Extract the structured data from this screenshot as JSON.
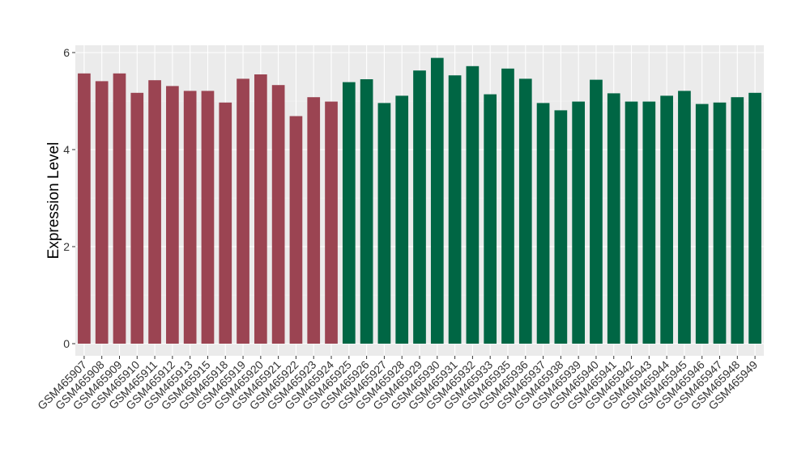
{
  "chart_data": {
    "type": "bar",
    "ylabel": "Expression Level",
    "xlabel": "",
    "ylim": [
      -0.25,
      6.15
    ],
    "yticks": [
      0,
      2,
      4,
      6
    ],
    "grid": true,
    "panel_background": "#EBEBEB",
    "categories": [
      "GSM465907",
      "GSM465908",
      "GSM465909",
      "GSM465910",
      "GSM465911",
      "GSM465912",
      "GSM465913",
      "GSM465915",
      "GSM465918",
      "GSM465919",
      "GSM465920",
      "GSM465921",
      "GSM465922",
      "GSM465923",
      "GSM465924",
      "GSM465925",
      "GSM465926",
      "GSM465927",
      "GSM465928",
      "GSM465929",
      "GSM465930",
      "GSM465931",
      "GSM465932",
      "GSM465933",
      "GSM465935",
      "GSM465936",
      "GSM465937",
      "GSM465938",
      "GSM465939",
      "GSM465940",
      "GSM465941",
      "GSM465942",
      "GSM465943",
      "GSM465944",
      "GSM465945",
      "GSM465946",
      "GSM465947",
      "GSM465948",
      "GSM465949"
    ],
    "values": [
      5.57,
      5.41,
      5.57,
      5.17,
      5.43,
      5.31,
      5.21,
      5.21,
      4.97,
      5.46,
      5.55,
      5.33,
      4.69,
      5.08,
      4.99,
      5.39,
      5.45,
      4.96,
      5.11,
      5.63,
      5.89,
      5.53,
      5.72,
      5.14,
      5.67,
      5.46,
      4.96,
      4.81,
      4.99,
      5.44,
      5.16,
      4.99,
      4.99,
      5.11,
      5.21,
      4.94,
      4.97,
      5.08,
      5.17
    ],
    "groups": [
      0,
      0,
      0,
      0,
      0,
      0,
      0,
      0,
      0,
      0,
      0,
      0,
      0,
      0,
      0,
      1,
      1,
      1,
      1,
      1,
      1,
      1,
      1,
      1,
      1,
      1,
      1,
      1,
      1,
      1,
      1,
      1,
      1,
      1,
      1,
      1,
      1,
      1,
      1
    ],
    "group_colors": [
      "#9B4452",
      "#006644"
    ]
  }
}
